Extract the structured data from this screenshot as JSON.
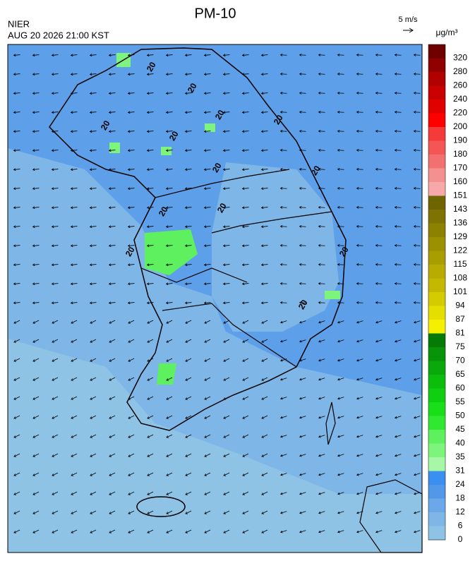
{
  "header": {
    "title": "PM-10",
    "agency": "NIER",
    "timestamp": "AUG 20 2026 21:00 KST",
    "wind_scale": "5 m/s"
  },
  "map": {
    "contour_labels": [
      "20",
      "20",
      "20",
      "20",
      "20",
      "20",
      "20",
      "20",
      "20",
      "20",
      "20",
      "20",
      "20"
    ]
  },
  "legend": {
    "unit": "μg/m³",
    "items": [
      {
        "label": "320",
        "color": "#6e0000"
      },
      {
        "label": "280",
        "color": "#900000"
      },
      {
        "label": "260",
        "color": "#b00000"
      },
      {
        "label": "240",
        "color": "#c80000"
      },
      {
        "label": "220",
        "color": "#e00000"
      },
      {
        "label": "200",
        "color": "#ff0000"
      },
      {
        "label": "190",
        "color": "#f53a3a"
      },
      {
        "label": "180",
        "color": "#f55555"
      },
      {
        "label": "170",
        "color": "#f37070"
      },
      {
        "label": "160",
        "color": "#f59090"
      },
      {
        "label": "151",
        "color": "#f7a8a8"
      },
      {
        "label": "143",
        "color": "#6e6500"
      },
      {
        "label": "136",
        "color": "#7e7300"
      },
      {
        "label": "129",
        "color": "#8d8200"
      },
      {
        "label": "122",
        "color": "#9a9000"
      },
      {
        "label": "115",
        "color": "#a89e00"
      },
      {
        "label": "108",
        "color": "#b8ac00"
      },
      {
        "label": "101",
        "color": "#c4b800"
      },
      {
        "label": "94",
        "color": "#d4cc00"
      },
      {
        "label": "87",
        "color": "#e5df00"
      },
      {
        "label": "81",
        "color": "#f5f000"
      },
      {
        "label": "75",
        "color": "#057a05"
      },
      {
        "label": "70",
        "color": "#089308"
      },
      {
        "label": "65",
        "color": "#0aa80a"
      },
      {
        "label": "60",
        "color": "#0cbd0c"
      },
      {
        "label": "55",
        "color": "#10cf10"
      },
      {
        "label": "50",
        "color": "#18df18"
      },
      {
        "label": "45",
        "color": "#2fe82f"
      },
      {
        "label": "40",
        "color": "#5ef05e"
      },
      {
        "label": "35",
        "color": "#7df57d"
      },
      {
        "label": "31",
        "color": "#a6f7a6"
      },
      {
        "label": "24",
        "color": "#3a8ff0"
      },
      {
        "label": "18",
        "color": "#5199e8"
      },
      {
        "label": "12",
        "color": "#6aa8ea"
      },
      {
        "label": "6",
        "color": "#7fb6e8"
      },
      {
        "label": "0",
        "color": "#8ec3e6"
      }
    ]
  }
}
